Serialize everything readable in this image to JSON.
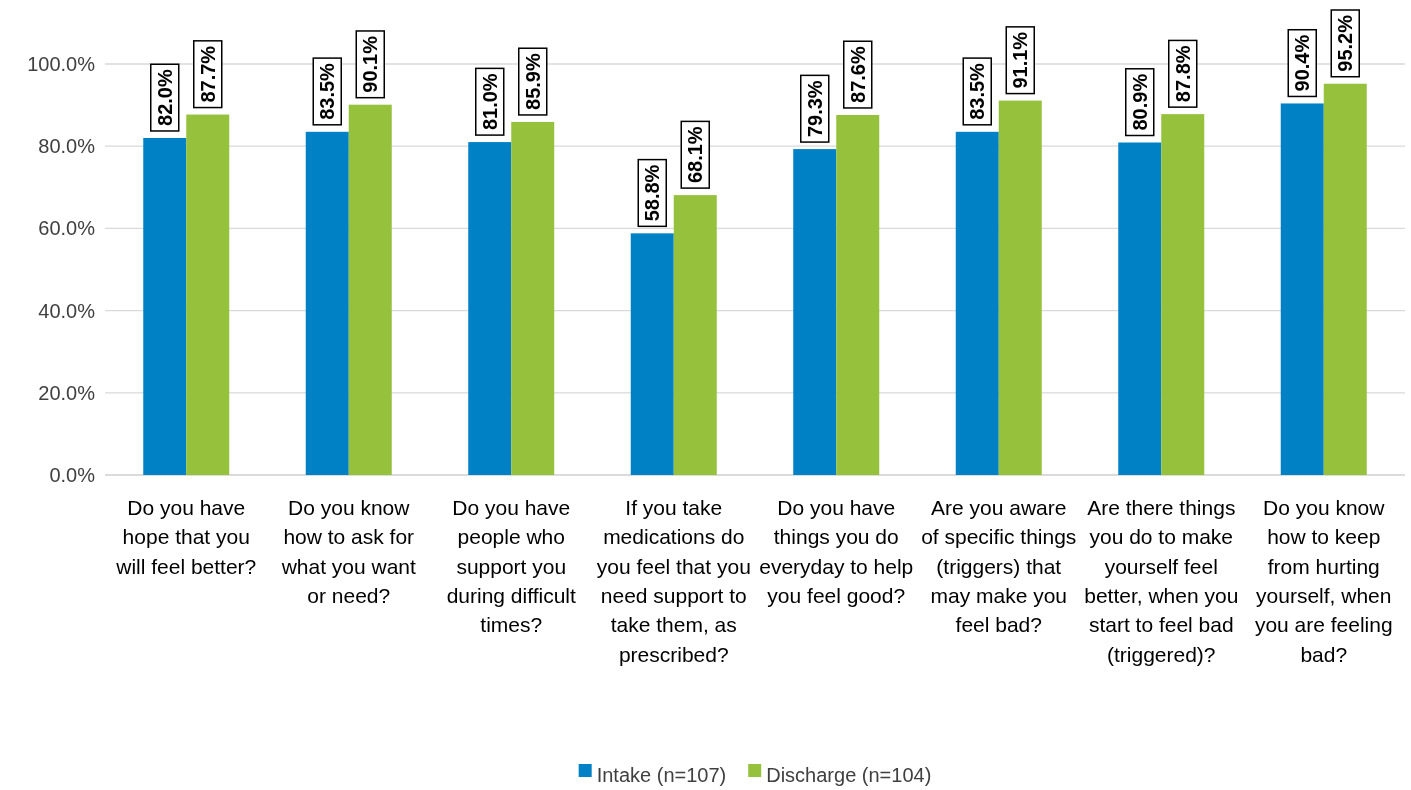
{
  "chart_data": {
    "type": "bar",
    "categories": [
      "Do you have hope that you will feel better?",
      "Do you know how to ask for what you want or need?",
      "Do you have people who support you during difficult times?",
      "If you take medications do you feel that you need support to take them, as prescribed?",
      "Do you have things you do everyday to help you feel good?",
      "Are you aware of specific things (triggers) that may make you feel bad?",
      "Are there things you do to make yourself feel better, when you start to feel bad (triggered)?",
      "Do you know how to keep from hurting yourself, when you are feeling bad?"
    ],
    "series": [
      {
        "name": "Intake (n=107)",
        "color": "#0081c6",
        "values": [
          82.0,
          83.5,
          81.0,
          58.8,
          79.3,
          83.5,
          80.9,
          90.4
        ],
        "value_labels": [
          "82.0%",
          "83.5%",
          "81.0%",
          "58.8%",
          "79.3%",
          "83.5%",
          "80.9%",
          "90.4%"
        ]
      },
      {
        "name": "Discharge (n=104)",
        "color": "#95c13d",
        "values": [
          87.7,
          90.1,
          85.9,
          68.1,
          87.6,
          91.1,
          87.8,
          95.2
        ],
        "value_labels": [
          "87.7%",
          "90.1%",
          "85.9%",
          "68.1%",
          "87.6%",
          "91.1%",
          "87.8%",
          "95.2%"
        ]
      }
    ],
    "ylim": [
      0,
      100
    ],
    "yticks": [
      {
        "value": 0,
        "label": "0.0%"
      },
      {
        "value": 20,
        "label": "20.0%"
      },
      {
        "value": 40,
        "label": "40.0%"
      },
      {
        "value": 60,
        "label": "60.0%"
      },
      {
        "value": 80,
        "label": "80.0%"
      },
      {
        "value": 100,
        "label": "100.0%"
      }
    ],
    "grid": "y",
    "legend": "bottom"
  }
}
